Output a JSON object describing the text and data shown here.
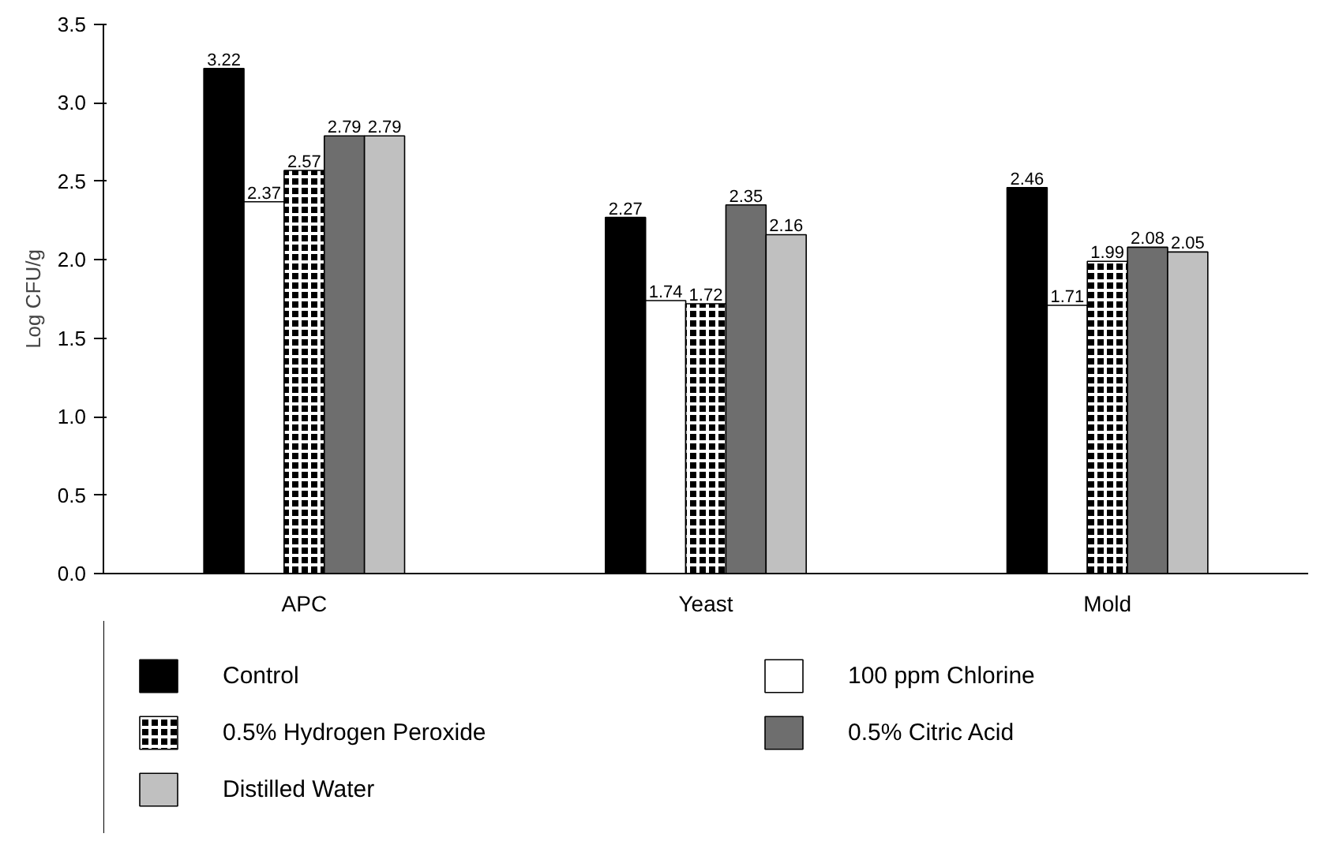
{
  "chart_data": {
    "type": "bar",
    "ylabel": "Log CFU/g",
    "categories": [
      "APC",
      "Yeast",
      "Mold"
    ],
    "ylim": [
      0,
      3.5
    ],
    "yticks": [
      "0.0",
      "0.5",
      "1.0",
      "1.5",
      "2.0",
      "2.5",
      "3.0",
      "3.5"
    ],
    "series": [
      {
        "name": "Control",
        "color": "#000000",
        "values": [
          3.22,
          2.27,
          2.46
        ]
      },
      {
        "name": "100 ppm Chlorine",
        "color": "#ffffff",
        "values": [
          2.37,
          1.74,
          1.71
        ]
      },
      {
        "name": "0.5% Hydrogen Peroxide",
        "color": "#000000",
        "values": [
          2.57,
          1.72,
          1.99
        ]
      },
      {
        "name": "0.5% Citric Acid",
        "color": "#6e6e6e",
        "values": [
          2.79,
          2.35,
          2.08
        ]
      },
      {
        "name": "Distilled Water",
        "color": "#c0c0c0",
        "values": [
          2.79,
          2.16,
          2.05
        ]
      }
    ],
    "data_labels": true,
    "grid": false,
    "legend": "bottom"
  }
}
